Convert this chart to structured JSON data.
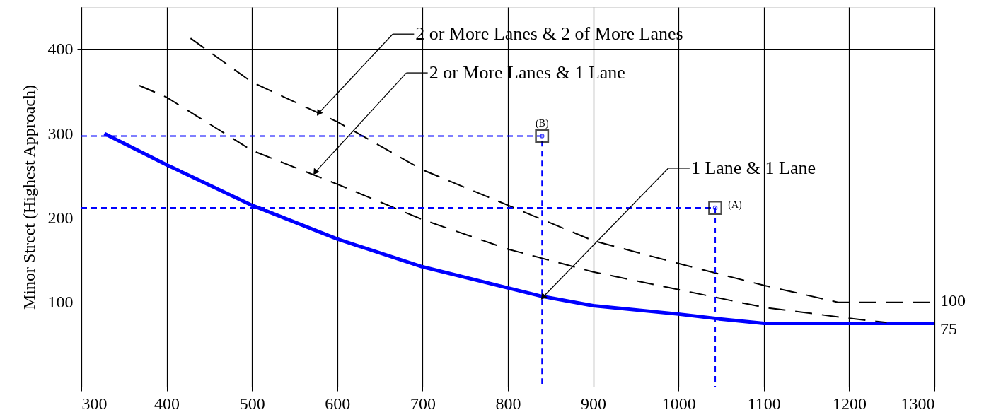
{
  "chart_data": {
    "type": "line",
    "ylabel": "Minor Street (Highest Approach)",
    "xlim": [
      300,
      1300
    ],
    "xticks": [
      300,
      400,
      500,
      600,
      700,
      800,
      900,
      1000,
      1100,
      1200,
      1300
    ],
    "ylim": [
      0,
      450
    ],
    "yticks": [
      100,
      200,
      300,
      400
    ],
    "grid": true,
    "series": [
      {
        "type": "line",
        "color": "#0000ff",
        "line_style": "solid",
        "marker": "none",
        "x": [
          327,
          400,
          500,
          600,
          700,
          800,
          840,
          900,
          1000,
          1050,
          1100,
          1300
        ],
        "values": [
          300,
          263,
          215,
          175,
          142,
          117,
          107,
          96,
          86,
          80,
          75,
          75
        ]
      },
      {
        "type": "line",
        "color": "#000000",
        "line_style": "dashed",
        "marker": "none",
        "x": [
          368,
          400,
          500,
          600,
          700,
          800,
          900,
          1000,
          1100,
          1200,
          1244
        ],
        "values": [
          357,
          343,
          280,
          240,
          198,
          163,
          136,
          115,
          94,
          81,
          76
        ]
      },
      {
        "type": "line",
        "color": "#000000",
        "line_style": "dashed",
        "marker": "none",
        "x": [
          428,
          500,
          600,
          700,
          800,
          900,
          1000,
          1100,
          1187,
          1300
        ],
        "values": [
          413,
          361,
          314,
          257,
          215,
          173,
          146,
          120,
          100,
          100
        ]
      },
      {
        "type": "line",
        "color": "#0000ff",
        "line_style": "dashed",
        "marker": "none",
        "x": [
          300,
          1043,
          1043
        ],
        "values": [
          212,
          212,
          0
        ]
      },
      {
        "type": "line",
        "color": "#0000ff",
        "line_style": "dashed",
        "marker": "none",
        "x": [
          300,
          840,
          840
        ],
        "values": [
          297,
          297,
          0
        ]
      },
      {
        "type": "scatter",
        "color": "#000000",
        "marker": "square",
        "x": [
          840,
          1043
        ],
        "values": [
          297,
          212
        ]
      }
    ],
    "annotations": [
      {
        "text": "2 or More Lanes & 2 of More Lanes",
        "x": 578,
        "y": 324
      },
      {
        "text": "2 or More Lanes & 1 Lane",
        "x": 574,
        "y": 254
      },
      {
        "text": "1 Lane & 1 Lane",
        "x": 841,
        "y": 106
      },
      {
        "text": "(B)",
        "x": 840,
        "y": 297
      },
      {
        "text": "(A)",
        "x": 1043,
        "y": 212
      },
      {
        "text": "100",
        "x": 1300,
        "y": 100
      },
      {
        "text": "75",
        "x": 1300,
        "y": 75
      }
    ]
  }
}
